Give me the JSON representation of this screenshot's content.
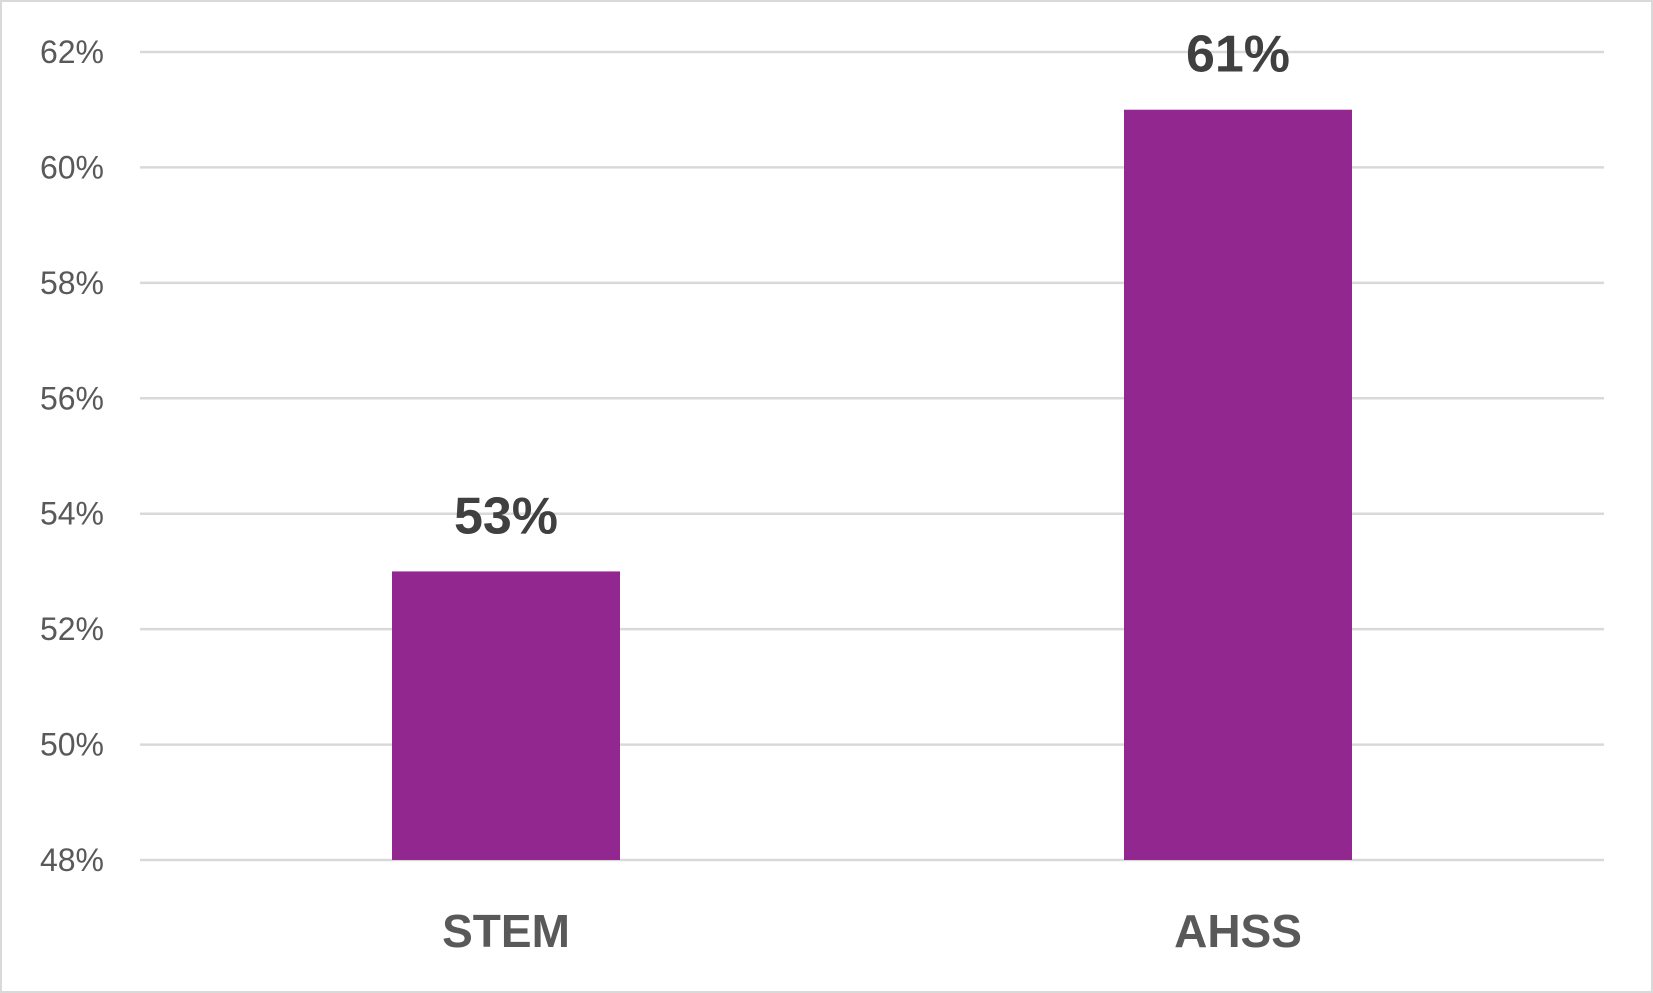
{
  "chart_data": {
    "type": "bar",
    "title": "",
    "xlabel": "",
    "ylabel": "",
    "categories": [
      "STEM",
      "AHSS"
    ],
    "values": [
      53,
      61
    ],
    "data_labels": [
      "53%",
      "61%"
    ],
    "ylim": [
      48,
      62
    ],
    "yticks": [
      48,
      50,
      52,
      54,
      56,
      58,
      60,
      62
    ],
    "ytick_labels": [
      "48%",
      "50%",
      "52%",
      "54%",
      "56%",
      "58%",
      "60%",
      "62%"
    ],
    "grid": true,
    "legend": "none",
    "colors": {
      "bar": "#92278f",
      "grid": "#d9d9d9",
      "tick_text": "#595959",
      "data_label": "#404040"
    }
  }
}
